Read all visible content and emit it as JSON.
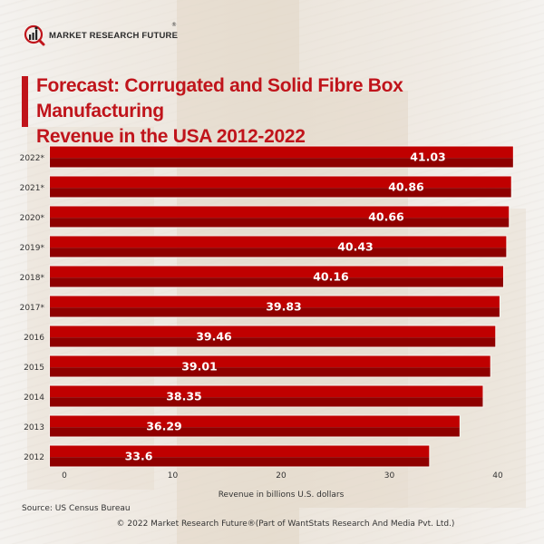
{
  "brand": {
    "name": "MARKET RESEARCH FUTURE",
    "registered_mark": "®"
  },
  "title": {
    "line1": "Forecast: Corrugated and Solid Fibre Box Manufacturing",
    "line2": "Revenue in the USA 2012-2022"
  },
  "colors": {
    "accent": "#c0141b",
    "bar_top": "#c00000",
    "bar_bottom": "#8e0000",
    "bar_label": "#ffffff"
  },
  "chart_data": {
    "type": "bar",
    "orientation": "horizontal",
    "title": "Forecast: Corrugated and Solid Fibre Box Manufacturing Revenue in the USA 2012-2022",
    "categories": [
      "2022*",
      "2021*",
      "2020*",
      "2019*",
      "2018*",
      "2017*",
      "2016",
      "2015",
      "2014",
      "2013",
      "2012"
    ],
    "values": [
      41.03,
      40.86,
      40.66,
      40.43,
      40.16,
      39.83,
      39.46,
      39.01,
      38.35,
      36.29,
      33.6
    ],
    "value_labels": [
      "41.03",
      "40.86",
      "40.66",
      "40.43",
      "40.16",
      "39.83",
      "39.46",
      "39.01",
      "38.35",
      "36.29",
      "33.6"
    ],
    "xlabel": "Revenue in billions U.S. dollars",
    "ylabel": "",
    "xlim": [
      0,
      40
    ],
    "xticks": [
      0,
      10,
      20,
      30,
      40
    ],
    "grid": false,
    "legend": "none"
  },
  "footer": {
    "source": "Source: US Census Bureau",
    "copyright": "© 2022 Market Research Future®(Part of WantStats Research And Media Pvt. Ltd.)"
  }
}
